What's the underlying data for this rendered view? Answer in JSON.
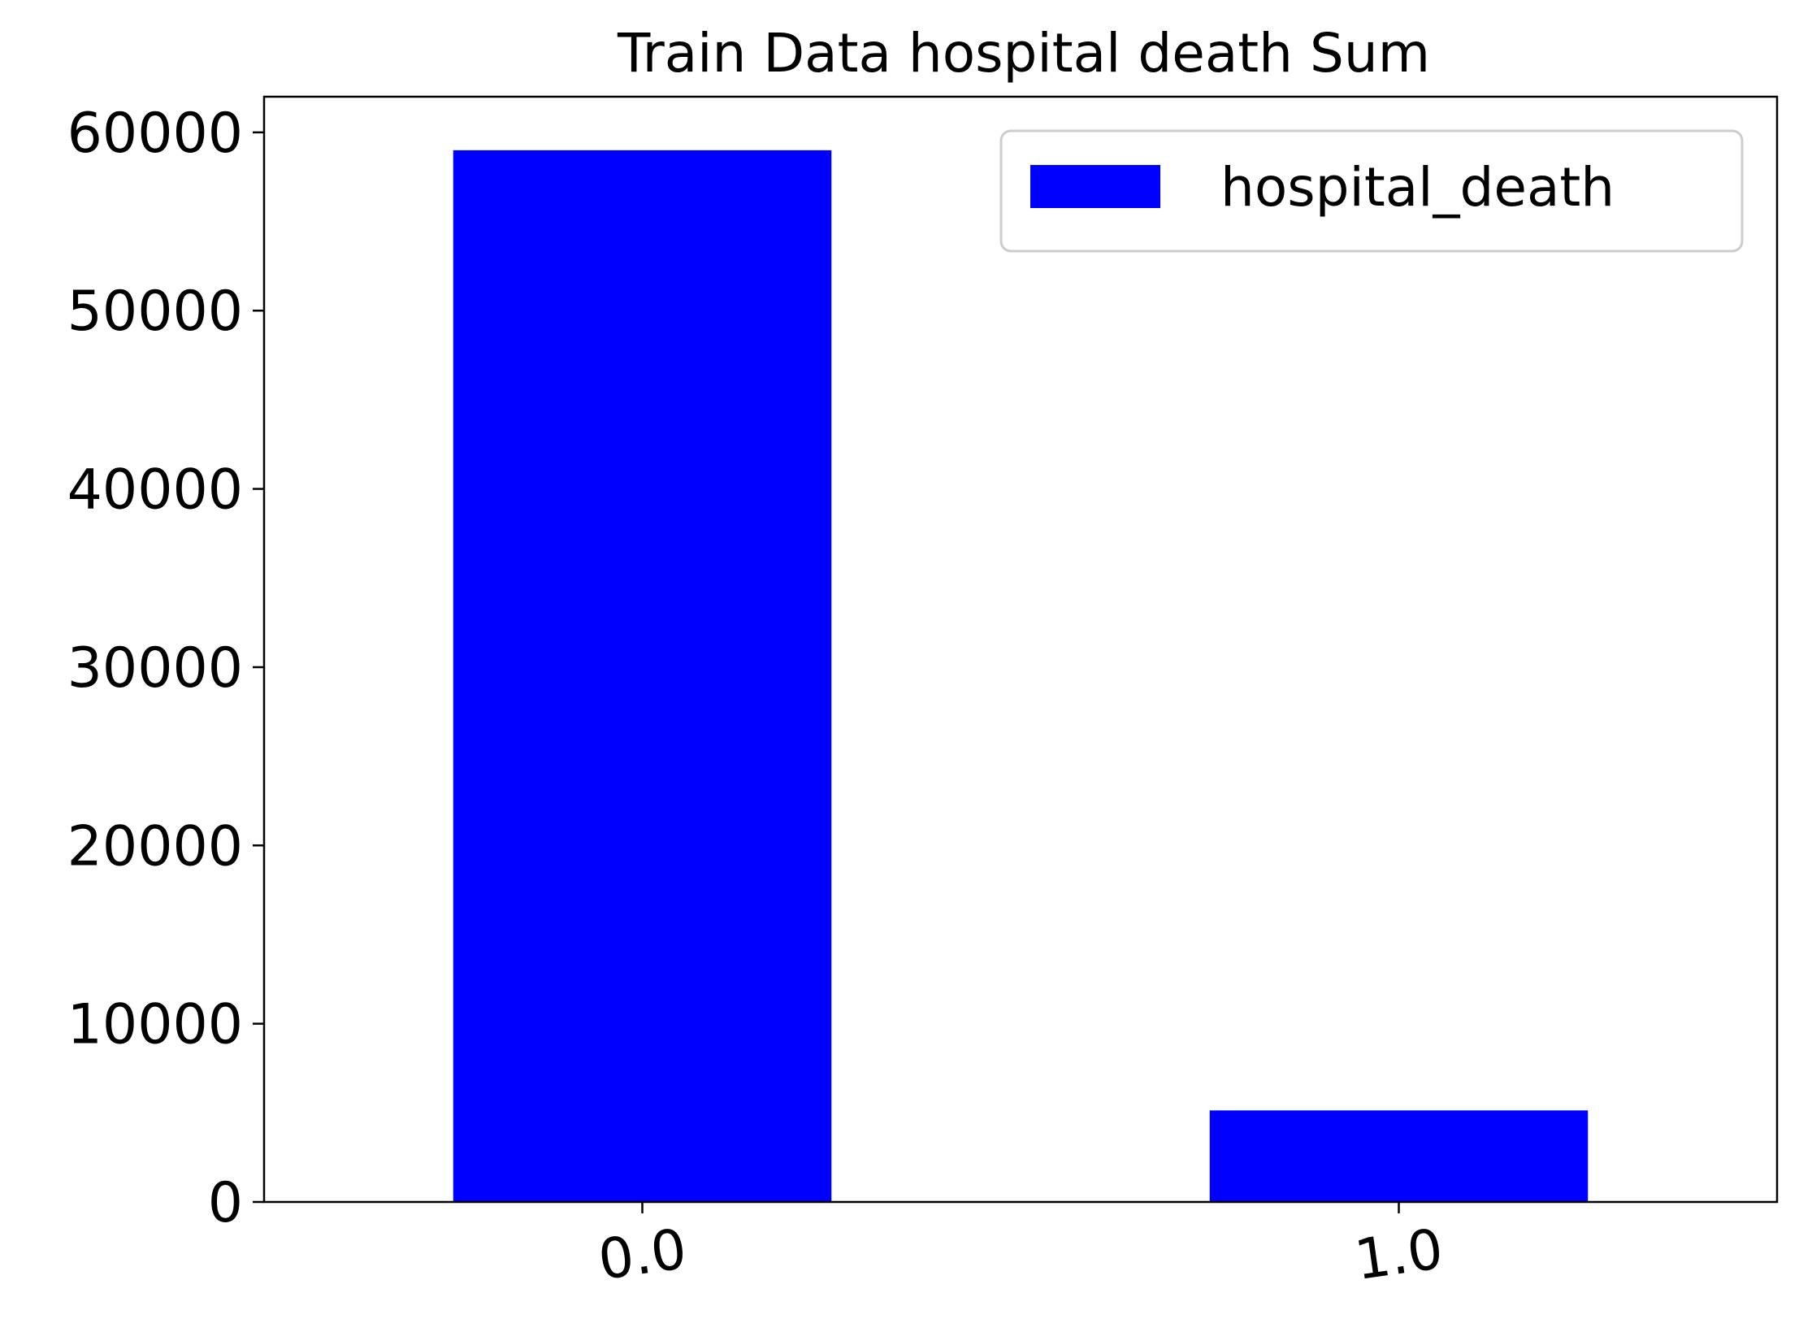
{
  "chart_data": {
    "type": "bar",
    "title": "Train Data hospital death Sum",
    "xlabel": "",
    "ylabel": "",
    "categories": [
      "0.0",
      "1.0"
    ],
    "series": [
      {
        "name": "hospital_death",
        "values": [
          58997,
          5136
        ]
      }
    ],
    "ylim": [
      0,
      62000
    ],
    "yticks": [
      0,
      10000,
      20000,
      30000,
      40000,
      50000,
      60000
    ],
    "ytick_labels": [
      "0",
      "10000",
      "20000",
      "30000",
      "40000",
      "50000",
      "60000"
    ],
    "xtick_rotation": "slight counter-clockwise tilt",
    "grid": false,
    "legend": "top-right",
    "colors": {
      "bar": "#0000ff",
      "axes": "#000000",
      "background": "#ffffff"
    }
  }
}
